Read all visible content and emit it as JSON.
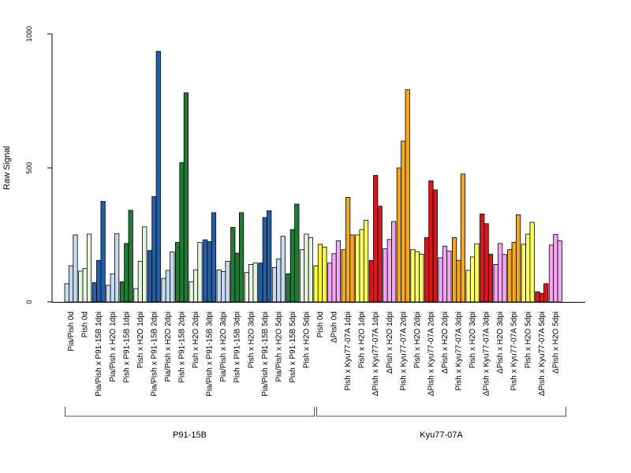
{
  "chart_data": {
    "type": "bar",
    "ylabel": "Raw Signal",
    "ylim": [
      0,
      1000
    ],
    "yticks": [
      0,
      500,
      1000
    ],
    "grid": false,
    "categories": [
      "Pia/Pish 0d",
      "Pish 0d",
      "Pia/Pish x P91-15B 1dpi",
      "Pia/Pish x H2O 1dpi",
      "Pish x P91-15B 1dpi",
      "Pish x H2O 1dpi",
      "Pia/Pish x P91-15B 2dpi",
      "Pia/Pish x H2O 2dpi",
      "Pish x P91-15B 2dpi",
      "Pish x H2O 2dpi",
      "Pia/Pish x P91-15B 3dpi",
      "Pia/Pish x H2O 3dpi",
      "Pish x P91-15B 3dpi",
      "Pish x H2O 3dpi",
      "Pia/Pish x P91-15B 5dpi",
      "Pia/Pish x H2O 5dpi",
      "Pish x P91-15B 5dpi",
      "Pish x H2O 5dpi",
      "Pish 0d",
      "ΔPish 0d",
      "Pish x Kyu77-07A 1dpi",
      "Pish x H2O 1dpi",
      "ΔPish x Kyu77-07A 1dpi",
      "ΔPish x H2O 1dpi",
      "Pish x Kyu77-07A 2dpi",
      "Pish x H2O 2dpi",
      "ΔPish x Kyu77-07A 2dpi",
      "ΔPish x H2O 2dpi",
      "Pish x Kyu77-07A 3dpi",
      "Pish x H2O 3dpi",
      "ΔPish x Kyu77-07A 3dpi",
      "ΔPish x H2O 3dpi",
      "Pish x Kyu77-07A 5dpi",
      "Pish x H2O 5dpi",
      "ΔPish x Kyu77-07A 5dpi",
      "ΔPish x H2O 5dpi"
    ],
    "colors": [
      "#c6dbef",
      "#e5f5e0",
      "#2060a8",
      "#c6dbef",
      "#237a35",
      "#e5f5e0",
      "#2060a8",
      "#c6dbef",
      "#237a35",
      "#e5f5e0",
      "#2060a8",
      "#c6dbef",
      "#237a35",
      "#e5f5e0",
      "#2060a8",
      "#c6dbef",
      "#237a35",
      "#e5f5e0",
      "#ffff33",
      "#f3a6f3",
      "#f5a81d",
      "#ffff66",
      "#d7191c",
      "#f3a6f3",
      "#f5a81d",
      "#ffff66",
      "#d7191c",
      "#f3a6f3",
      "#f5a81d",
      "#ffff66",
      "#d7191c",
      "#f3a6f3",
      "#f5a81d",
      "#ffff66",
      "#d7191c",
      "#f3a6f3"
    ],
    "values": [
      [
        68,
        135,
        250
      ],
      [
        115,
        125,
        253
      ],
      [
        72,
        155,
        375
      ],
      [
        62,
        105,
        255
      ],
      [
        75,
        218,
        342
      ],
      [
        50,
        152,
        280
      ],
      [
        192,
        393,
        935
      ],
      [
        88,
        118,
        187
      ],
      [
        222,
        520,
        780
      ],
      [
        75,
        120,
        222
      ],
      [
        232,
        225,
        333
      ],
      [
        120,
        113,
        152
      ],
      [
        278,
        182,
        333
      ],
      [
        110,
        140,
        145
      ],
      [
        145,
        315,
        340
      ],
      [
        128,
        160,
        245
      ],
      [
        105,
        270,
        365
      ],
      [
        195,
        253,
        240
      ],
      [
        135,
        215,
        205
      ],
      [
        145,
        180,
        228
      ],
      [
        195,
        390,
        250
      ],
      [
        250,
        270,
        305
      ],
      [
        155,
        472,
        357
      ],
      [
        198,
        233,
        300
      ],
      [
        500,
        600,
        792
      ],
      [
        195,
        188,
        178
      ],
      [
        240,
        452,
        418
      ],
      [
        165,
        208,
        190
      ],
      [
        240,
        155,
        477
      ],
      [
        118,
        168,
        217
      ],
      [
        328,
        292,
        178
      ],
      [
        140,
        218,
        177
      ],
      [
        195,
        222,
        325
      ],
      [
        215,
        253,
        297
      ],
      [
        38,
        32,
        68
      ],
      [
        212,
        252,
        228
      ]
    ],
    "groups": [
      {
        "label": "P91-15B",
        "start": 0,
        "end": 17
      },
      {
        "label": "Kyu77-07A",
        "start": 18,
        "end": 35
      }
    ]
  }
}
